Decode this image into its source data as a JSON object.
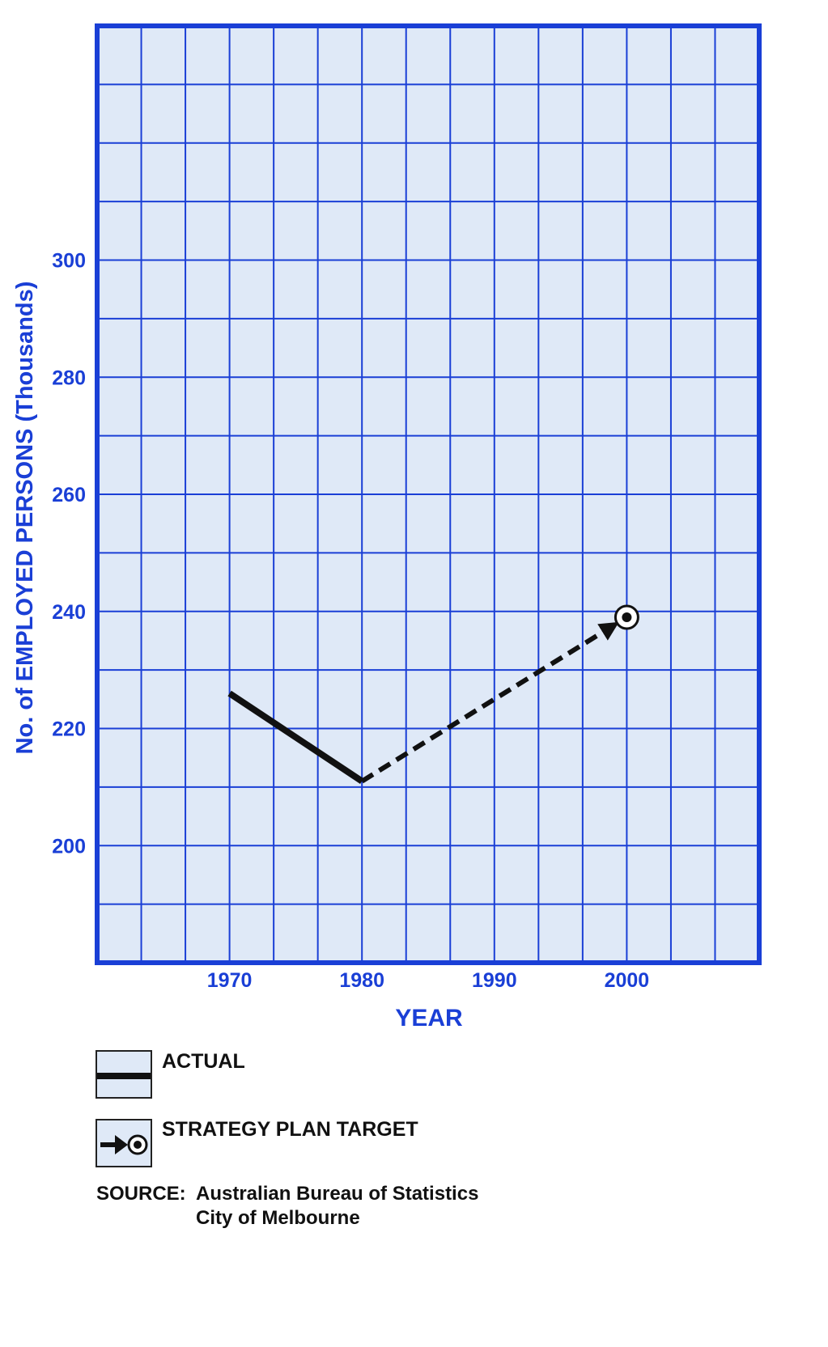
{
  "chart_data": {
    "type": "line",
    "title": "",
    "xlabel": "YEAR",
    "ylabel": "No. of EMPLOYED PERSONS (Thousands)",
    "x_ticks": [
      "1970",
      "1980",
      "1990",
      "2000"
    ],
    "y_ticks": [
      "200",
      "220",
      "240",
      "260",
      "280",
      "300"
    ],
    "xlim": [
      1960,
      2010
    ],
    "ylim": [
      180,
      340
    ],
    "grid": true,
    "series": [
      {
        "name": "ACTUAL",
        "style": "solid",
        "x": [
          1970,
          1980
        ],
        "y": [
          226,
          211
        ]
      },
      {
        "name": "STRATEGY PLAN TARGET",
        "style": "dashed-arrow",
        "x": [
          1980,
          2000
        ],
        "y": [
          211,
          239
        ]
      }
    ],
    "legend": {
      "position": "bottom-left",
      "items": [
        {
          "label": "ACTUAL",
          "icon": "solid-line-icon"
        },
        {
          "label": "STRATEGY PLAN TARGET",
          "icon": "arrow-target-icon"
        }
      ]
    },
    "source": {
      "label": "SOURCE:",
      "lines": [
        "Australian Bureau of Statistics",
        "City of Melbourne"
      ]
    }
  },
  "colors": {
    "grid_blue": "#1a3fd6",
    "plot_background": "#dfe9f7",
    "line_black": "#111111"
  }
}
